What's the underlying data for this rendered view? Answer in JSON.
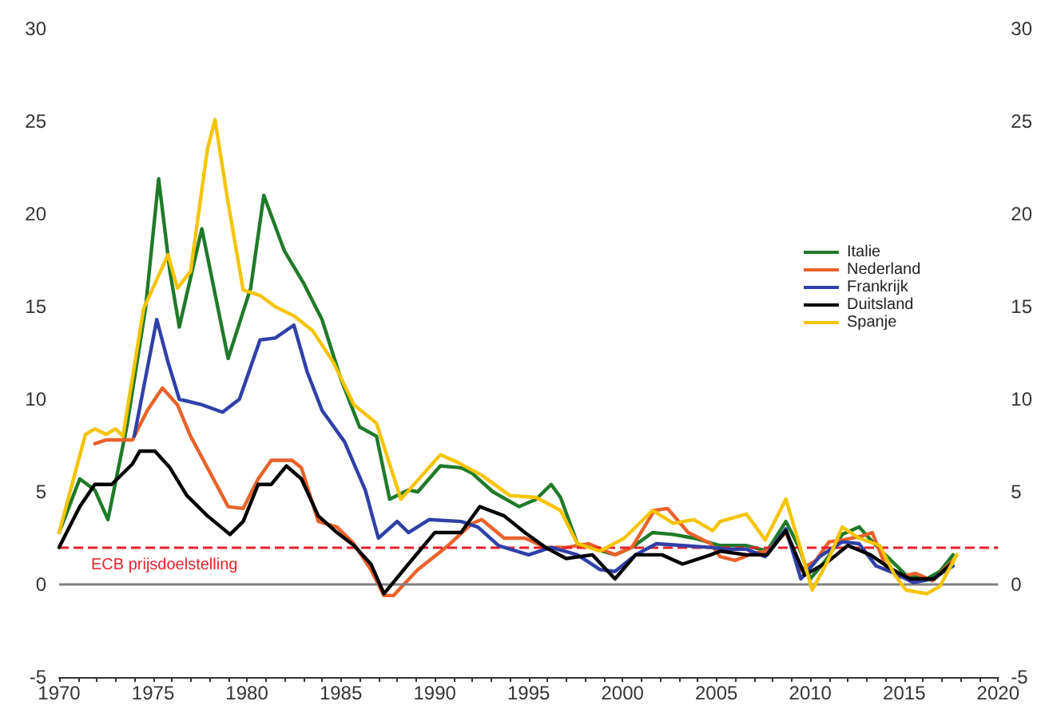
{
  "chart_data": {
    "type": "line",
    "legend": "right",
    "marker": "none",
    "line_style": "solid",
    "grid": false,
    "xlim": [
      1970,
      2020
    ],
    "xticks": [
      1970,
      {
        "value": 1971,
        "label": null
      },
      {
        "value": 1972,
        "label": null
      },
      {
        "value": 1973,
        "label": null
      },
      {
        "value": 1974,
        "label": null
      },
      1975,
      {
        "value": 1976,
        "label": null
      },
      {
        "value": 1977,
        "label": null
      },
      {
        "value": 1978,
        "label": null
      },
      {
        "value": 1979,
        "label": null
      },
      1980,
      {
        "value": 1981,
        "label": null
      },
      {
        "value": 1982,
        "label": null
      },
      {
        "value": 1983,
        "label": null
      },
      {
        "value": 1984,
        "label": null
      },
      1985,
      {
        "value": 1986,
        "label": null
      },
      {
        "value": 1987,
        "label": null
      },
      {
        "value": 1988,
        "label": null
      },
      {
        "value": 1989,
        "label": null
      },
      1990,
      {
        "value": 1991,
        "label": null
      },
      {
        "value": 1992,
        "label": null
      },
      {
        "value": 1993,
        "label": null
      },
      {
        "value": 1994,
        "label": null
      },
      1995,
      {
        "value": 1996,
        "label": null
      },
      {
        "value": 1997,
        "label": null
      },
      {
        "value": 1998,
        "label": null
      },
      {
        "value": 1999,
        "label": null
      },
      2000,
      {
        "value": 2001,
        "label": null
      },
      {
        "value": 2002,
        "label": null
      },
      {
        "value": 2003,
        "label": null
      },
      {
        "value": 2004,
        "label": null
      },
      2005,
      {
        "value": 2006,
        "label": null
      },
      {
        "value": 2007,
        "label": null
      },
      {
        "value": 2008,
        "label": null
      },
      {
        "value": 2009,
        "label": null
      },
      2010,
      {
        "value": 2011,
        "label": null
      },
      {
        "value": 2012,
        "label": null
      },
      {
        "value": 2013,
        "label": null
      },
      {
        "value": 2014,
        "label": null
      },
      2015,
      {
        "value": 2016,
        "label": null
      },
      {
        "value": 2017,
        "label": null
      },
      {
        "value": 2018,
        "label": null
      },
      {
        "value": 2019,
        "label": null
      },
      2020
    ],
    "ylim": [
      -5,
      30
    ],
    "yticks": [
      -5,
      0,
      5,
      10,
      15,
      20,
      25,
      30
    ],
    "y2lim": [
      -5,
      30
    ],
    "y2ticks": [
      -5,
      0,
      5,
      10,
      15,
      20,
      25,
      30
    ],
    "ref_lines": [
      {
        "axis": "y",
        "value": 2,
        "label": "ECB prijsdoelstelling",
        "color": "#e8202a",
        "line_style": "dashed"
      },
      {
        "axis": "y",
        "value": 0,
        "label": null,
        "color": "#808080",
        "line_style": "solid"
      }
    ],
    "series": [
      {
        "name": "Italie",
        "color": "#1f7a2a",
        "x": [
          1970,
          1971.1,
          1971.9,
          1972.6,
          1973.6,
          1974.6,
          1975.3,
          1975.9,
          1976.4,
          1977.6,
          1979,
          1980.2,
          1980.9,
          1982,
          1983,
          1984,
          1985,
          1986,
          1986.9,
          1987.6,
          1988.6,
          1989.1,
          1990.3,
          1991.4,
          1992,
          1993.1,
          1994.5,
          1995.4,
          1996.2,
          1996.7,
          1997.6,
          1999.6,
          2000.5,
          2001.6,
          2002.7,
          2003.8,
          2005.2,
          2006.6,
          2007.7,
          2008.7,
          2009.4,
          2010,
          2010.9,
          2011.7,
          2012.6,
          2013.4,
          2014.2,
          2015.1,
          2016.2,
          2016.9,
          2017.6
        ],
        "values": [
          2.8,
          5.7,
          5.1,
          3.5,
          8.5,
          14.9,
          21.9,
          16.9,
          13.9,
          19.2,
          12.2,
          16,
          21,
          18,
          16.3,
          14.3,
          11.1,
          8.5,
          8,
          4.6,
          5.1,
          5,
          6.4,
          6.3,
          6,
          5,
          4.2,
          4.6,
          5.4,
          4.7,
          2.2,
          1.6,
          2,
          2.8,
          2.7,
          2.5,
          2.1,
          2.1,
          1.8,
          3.4,
          2,
          0.3,
          1.4,
          2.7,
          3.1,
          2.2,
          1.4,
          0.5,
          0.3,
          0.7,
          1.6
        ]
      },
      {
        "name": "Nederland",
        "color": "#e8622a",
        "x": [
          1971.9,
          1972.5,
          1973.9,
          1974.7,
          1975.5,
          1976.3,
          1977,
          1977.9,
          1979,
          1979.8,
          1980.6,
          1981.3,
          1982.4,
          1982.9,
          1983.8,
          1984.8,
          1985.7,
          1986.6,
          1987.3,
          1987.8,
          1989.1,
          1990.6,
          1992,
          1992.5,
          1993.7,
          1994.8,
          1995.9,
          1997,
          1998.2,
          1999.6,
          2000.5,
          2001.7,
          2002.4,
          2003.5,
          2004.7,
          2005.2,
          2006,
          2007,
          2007.7,
          2008.7,
          2009.5,
          2010.3,
          2011,
          2011.7,
          2012.7,
          2013.3,
          2014,
          2014.8,
          2015.6,
          2016.5,
          2017.6
        ],
        "values": [
          7.6,
          7.8,
          7.8,
          9.4,
          10.6,
          9.7,
          8,
          6.3,
          4.2,
          4.1,
          5.7,
          6.7,
          6.7,
          6.3,
          3.4,
          3.1,
          2.2,
          0.8,
          -0.6,
          -0.6,
          0.8,
          2,
          3.3,
          3.5,
          2.5,
          2.5,
          2,
          2,
          2.2,
          1.6,
          2,
          4,
          4.1,
          2.8,
          2.2,
          1.5,
          1.3,
          1.7,
          1.8,
          2.8,
          0.8,
          1.3,
          2.3,
          2.4,
          2.6,
          2.8,
          1,
          0.4,
          0.6,
          0.2,
          1.3
        ]
      },
      {
        "name": "Frankrijk",
        "color": "#3040a8",
        "x": [
          1974,
          1975.2,
          1975.8,
          1976.4,
          1977.6,
          1978.7,
          1979.6,
          1980.7,
          1981.5,
          1982.5,
          1983.2,
          1984,
          1985.2,
          1986.3,
          1987,
          1988,
          1988.6,
          1989.7,
          1991.4,
          1992.3,
          1993.4,
          1995,
          1996.2,
          1997.6,
          1998.8,
          1999.6,
          2000.7,
          2001.8,
          2003.2,
          2004.7,
          2005.5,
          2006.6,
          2007.6,
          2008.7,
          2009.5,
          2010.5,
          2011.7,
          2012.6,
          2013.5,
          2014.5,
          2015.5,
          2016.5,
          2017.6
        ],
        "values": [
          8,
          14.3,
          12,
          10,
          9.7,
          9.3,
          10,
          13.2,
          13.3,
          14,
          11.5,
          9.4,
          7.7,
          5.1,
          2.5,
          3.4,
          2.8,
          3.5,
          3.4,
          3.1,
          2.1,
          1.6,
          2,
          1.6,
          0.8,
          0.7,
          1.6,
          2.2,
          2.1,
          2,
          1.9,
          1.9,
          1.5,
          3,
          0.3,
          1.5,
          2.3,
          2.2,
          1,
          0.6,
          0.1,
          0.3,
          1
        ]
      },
      {
        "name": "Duitsland",
        "color": "#000000",
        "x": [
          1970,
          1971.1,
          1971.9,
          1972.8,
          1973.9,
          1974.3,
          1975.1,
          1975.9,
          1976.8,
          1977.9,
          1979.1,
          1979.8,
          1980.6,
          1981.3,
          1982.1,
          1982.9,
          1983.8,
          1984.8,
          1985.7,
          1986.6,
          1987.3,
          1988.6,
          1990,
          1991.4,
          1992.4,
          1993.7,
          1994.8,
          1995.9,
          1997,
          1998.4,
          1999.6,
          2000.7,
          2002.1,
          2003.2,
          2004.7,
          2005.2,
          2006.6,
          2007.7,
          2008.7,
          2009.7,
          2010.9,
          2012,
          2013.2,
          2014.2,
          2015.3,
          2016.6,
          2017.6
        ],
        "values": [
          2,
          4.2,
          5.4,
          5.4,
          6.5,
          7.2,
          7.2,
          6.3,
          4.8,
          3.7,
          2.7,
          3.4,
          5.4,
          5.4,
          6.4,
          5.7,
          3.7,
          2.8,
          2.1,
          1.1,
          -0.5,
          1.1,
          2.8,
          2.8,
          4.2,
          3.7,
          2.8,
          2,
          1.4,
          1.6,
          0.3,
          1.6,
          1.6,
          1.1,
          1.6,
          1.8,
          1.6,
          1.6,
          2.9,
          0.5,
          1.2,
          2.1,
          1.6,
          0.9,
          0.3,
          0.3,
          1.2
        ]
      },
      {
        "name": "Spanje",
        "color": "#f5c400",
        "x": [
          1970,
          1971.4,
          1971.9,
          1972.5,
          1973,
          1973.4,
          1974.5,
          1975.8,
          1976.3,
          1977,
          1977.9,
          1978.3,
          1979,
          1979.8,
          1980.7,
          1981.5,
          1982.5,
          1983.5,
          1984.6,
          1985.7,
          1986.9,
          1988.2,
          1990.3,
          1991.2,
          1992.5,
          1994,
          1995.4,
          1996.7,
          1997.6,
          1998.8,
          2000.1,
          2001.6,
          2002.7,
          2003.8,
          2004.8,
          2005.2,
          2006.6,
          2007.6,
          2008.7,
          2009.4,
          2010.1,
          2010.9,
          2011.7,
          2012.6,
          2013.7,
          2014.5,
          2015.1,
          2016.2,
          2016.9,
          2017.8
        ],
        "values": [
          2.8,
          8.1,
          8.4,
          8.1,
          8.4,
          8,
          14.9,
          17.8,
          16,
          16.9,
          23.5,
          25.1,
          20.6,
          15.9,
          15.6,
          15,
          14.5,
          13.7,
          12,
          9.7,
          8.7,
          4.6,
          7,
          6.6,
          5.9,
          4.8,
          4.7,
          4,
          2.2,
          1.8,
          2.5,
          4,
          3.3,
          3.5,
          2.9,
          3.4,
          3.8,
          2.4,
          4.6,
          2.2,
          -0.3,
          1.2,
          3.1,
          2.5,
          2.1,
          0.5,
          -0.3,
          -0.5,
          -0.1,
          1.6
        ]
      }
    ]
  }
}
